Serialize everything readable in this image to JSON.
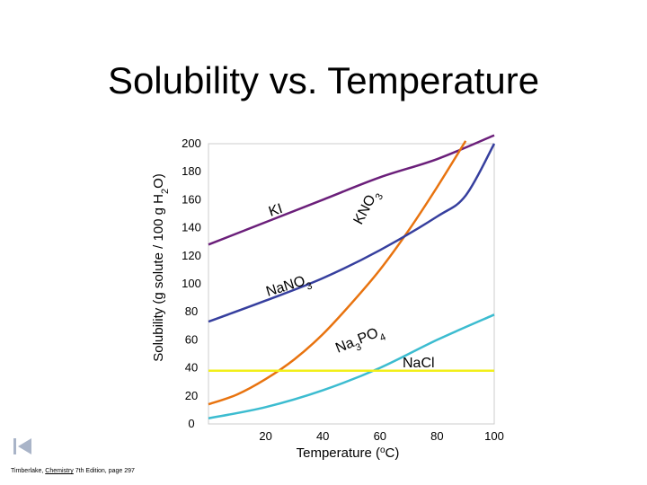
{
  "slide": {
    "title": "Solubility vs. Temperature",
    "citation_author": "Timberlake, ",
    "citation_book": "Chemistry",
    "citation_rest": " 7th Edition, page 297"
  },
  "chart_data": {
    "type": "line",
    "title": "",
    "xlabel": "Temperature (°C)",
    "ylabel": "Solubility (g solute / 100 g H2O)",
    "xlim": [
      0,
      100
    ],
    "ylim": [
      0,
      200
    ],
    "x_ticks": [
      20,
      40,
      60,
      80,
      100
    ],
    "y_ticks": [
      0,
      20,
      40,
      60,
      80,
      100,
      120,
      140,
      160,
      180,
      200
    ],
    "grid": false,
    "series": [
      {
        "name": "KI",
        "color": "#6b1f7a",
        "x": [
          0,
          20,
          40,
          60,
          80,
          100
        ],
        "y": [
          128,
          144,
          160,
          176,
          189,
          206
        ]
      },
      {
        "name": "KNO3",
        "color": "#e8730f",
        "x": [
          0,
          10,
          20,
          30,
          40,
          50,
          60,
          70,
          80,
          90
        ],
        "y": [
          14,
          21,
          32,
          46,
          64,
          86,
          110,
          138,
          169,
          202
        ]
      },
      {
        "name": "NaNO3",
        "color": "#363f9e",
        "x": [
          0,
          20,
          40,
          60,
          80,
          90,
          100
        ],
        "y": [
          73,
          88,
          104,
          124,
          148,
          163,
          200
        ]
      },
      {
        "name": "Na3PO4",
        "color": "#3cbcd0",
        "x": [
          0,
          20,
          40,
          60,
          80,
          100
        ],
        "y": [
          4,
          12,
          24,
          40,
          60,
          78
        ]
      },
      {
        "name": "NaCl",
        "color": "#f2ef1a",
        "x": [
          0,
          100
        ],
        "y": [
          38,
          38
        ]
      }
    ]
  }
}
